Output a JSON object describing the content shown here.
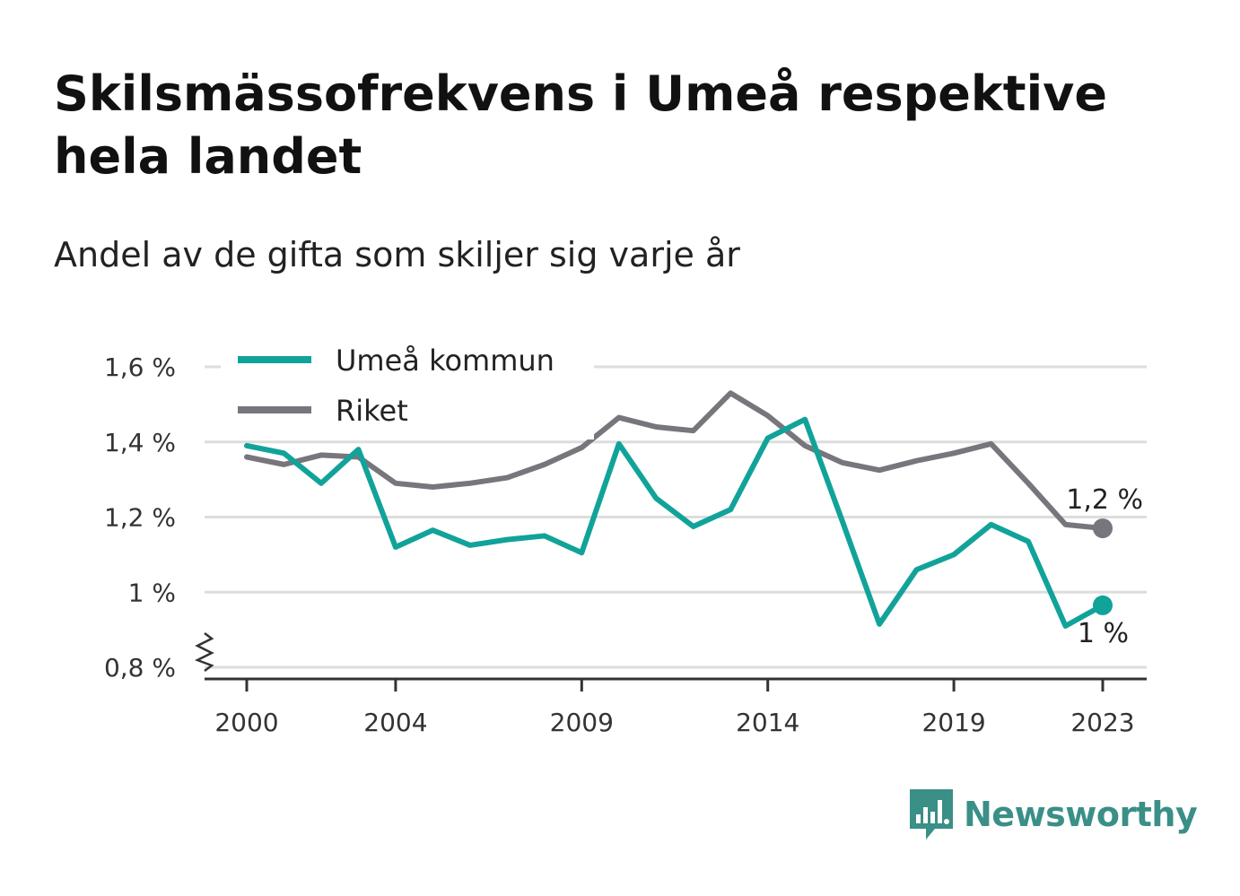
{
  "header": {
    "title": "Skilsmässofrekvens i Umeå respektive hela landet",
    "subtitle": "Andel av de gifta som skiljer sig varje år"
  },
  "branding": {
    "logo_text": "Newsworthy",
    "logo_icon": "bar-chart-speech-bubble-icon",
    "logo_color": "#3a8f87"
  },
  "colors": {
    "umea": "#11a39a",
    "riket": "#78767c",
    "grid": "#dddddd",
    "axis": "#333333"
  },
  "chart_data": {
    "type": "line",
    "title": "Skilsmässofrekvens i Umeå respektive hela landet",
    "subtitle": "Andel av de gifta som skiljer sig varje år",
    "xlabel": "",
    "ylabel": "",
    "x": [
      2000,
      2001,
      2002,
      2003,
      2004,
      2005,
      2006,
      2007,
      2008,
      2009,
      2010,
      2011,
      2012,
      2013,
      2014,
      2015,
      2016,
      2017,
      2018,
      2019,
      2020,
      2021,
      2022,
      2023
    ],
    "x_ticks": [
      {
        "value": 2000,
        "label": "2000"
      },
      {
        "value": 2004,
        "label": "2004"
      },
      {
        "value": 2009,
        "label": "2009"
      },
      {
        "value": 2014,
        "label": "2014"
      },
      {
        "value": 2019,
        "label": "2019"
      },
      {
        "value": 2023,
        "label": "2023"
      }
    ],
    "y_ticks": [
      {
        "value": 0.8,
        "label": "0,8 %"
      },
      {
        "value": 1.0,
        "label": "1 %"
      },
      {
        "value": 1.2,
        "label": "1,2 %"
      },
      {
        "value": 1.4,
        "label": "1,4 %"
      },
      {
        "value": 1.6,
        "label": "1,6 %"
      }
    ],
    "ylim": [
      0.8,
      1.6
    ],
    "xlim": [
      2000,
      2023
    ],
    "y_axis_break": true,
    "grid": "horizontal",
    "legend": "top-left",
    "series": [
      {
        "name": "Umeå kommun",
        "color": "#11a39a",
        "values": [
          1.39,
          1.37,
          1.29,
          1.38,
          1.12,
          1.165,
          1.125,
          1.14,
          1.15,
          1.105,
          1.395,
          1.25,
          1.175,
          1.22,
          1.41,
          1.46,
          1.19,
          0.915,
          1.06,
          1.1,
          1.18,
          1.135,
          0.91,
          0.965
        ],
        "end_label": "1 %"
      },
      {
        "name": "Riket",
        "color": "#78767c",
        "values": [
          1.36,
          1.34,
          1.365,
          1.36,
          1.29,
          1.28,
          1.29,
          1.305,
          1.34,
          1.385,
          1.465,
          1.44,
          1.43,
          1.53,
          1.47,
          1.39,
          1.345,
          1.325,
          1.35,
          1.37,
          1.395,
          1.29,
          1.18,
          1.17
        ],
        "end_label": "1,2 %"
      }
    ]
  }
}
